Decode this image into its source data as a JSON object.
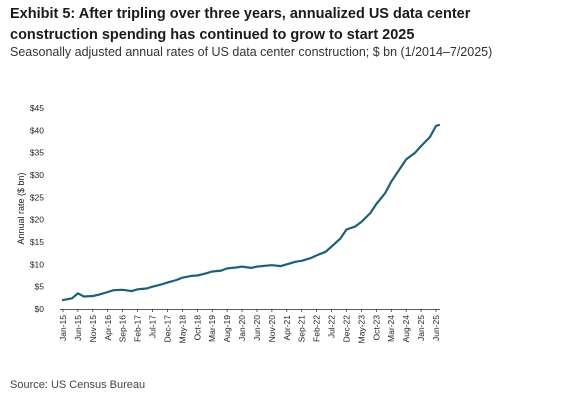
{
  "header": {
    "title": "Exhibit 5: After tripling over three years, annualized US data center construction spending has continued to grow to start 2025",
    "subtitle": "Seasonally adjusted annual rates of US data center construction; $ bn (1/2014–7/2025)"
  },
  "footer": {
    "source": "Source: US Census Bureau"
  },
  "chart_data": {
    "type": "line",
    "ylabel": "Annual rate ($ bn)",
    "ylim": [
      0,
      45
    ],
    "yticks": [
      0,
      5,
      10,
      15,
      20,
      25,
      30,
      35,
      40,
      45
    ],
    "ytick_labels": [
      "$0",
      "$5",
      "$10",
      "$15",
      "$20",
      "$25",
      "$30",
      "$35",
      "$40",
      "$45"
    ],
    "xtick_labels": [
      "Jan-15",
      "Jun-15",
      "Nov-15",
      "Apr-16",
      "Sep-16",
      "Feb-17",
      "Jul-17",
      "Dec-17",
      "May-18",
      "Oct-18",
      "Mar-19",
      "Aug-19",
      "Jan-20",
      "Jun-20",
      "Nov-20",
      "Apr-21",
      "Sep-21",
      "Feb-22",
      "Jul-22",
      "Dec-22",
      "May-23",
      "Oct-23",
      "Mar-24",
      "Aug-24",
      "Jan-25",
      "Jun-25"
    ],
    "grid": false,
    "line_color": "#1f5f7a",
    "series": [
      {
        "x": [
          "Jan-15",
          "Apr-15",
          "Jun-15",
          "Aug-15",
          "Nov-15",
          "Jan-16",
          "Apr-16",
          "Jun-16",
          "Sep-16",
          "Dec-16",
          "Feb-17",
          "May-17",
          "Jul-17",
          "Oct-17",
          "Dec-17",
          "Mar-18",
          "May-18",
          "Aug-18",
          "Oct-18",
          "Jan-19",
          "Mar-19",
          "Jun-19",
          "Aug-19",
          "Nov-19",
          "Jan-20",
          "Apr-20",
          "Jun-20",
          "Sep-20",
          "Nov-20",
          "Feb-21",
          "Apr-21",
          "Jul-21",
          "Sep-21",
          "Dec-21",
          "Feb-22",
          "May-22",
          "Jul-22",
          "Oct-22",
          "Dec-22",
          "Mar-23",
          "May-23",
          "Aug-23",
          "Oct-23",
          "Jan-24",
          "Mar-24",
          "Jun-24",
          "Aug-24",
          "Nov-24",
          "Jan-25",
          "Apr-25",
          "Jun-25",
          "Jul-25"
        ],
        "values": [
          2.0,
          2.4,
          3.5,
          2.8,
          2.9,
          3.2,
          3.8,
          4.2,
          4.3,
          4.0,
          4.4,
          4.6,
          5.0,
          5.5,
          5.9,
          6.5,
          7.0,
          7.4,
          7.5,
          8.0,
          8.4,
          8.6,
          9.1,
          9.3,
          9.5,
          9.2,
          9.5,
          9.7,
          9.8,
          9.6,
          10.0,
          10.6,
          10.8,
          11.4,
          12.0,
          12.8,
          14.0,
          15.8,
          17.8,
          18.5,
          19.5,
          21.5,
          23.5,
          26.0,
          28.5,
          31.5,
          33.5,
          35.0,
          36.5,
          38.5,
          41.0,
          41.2
        ]
      }
    ]
  }
}
